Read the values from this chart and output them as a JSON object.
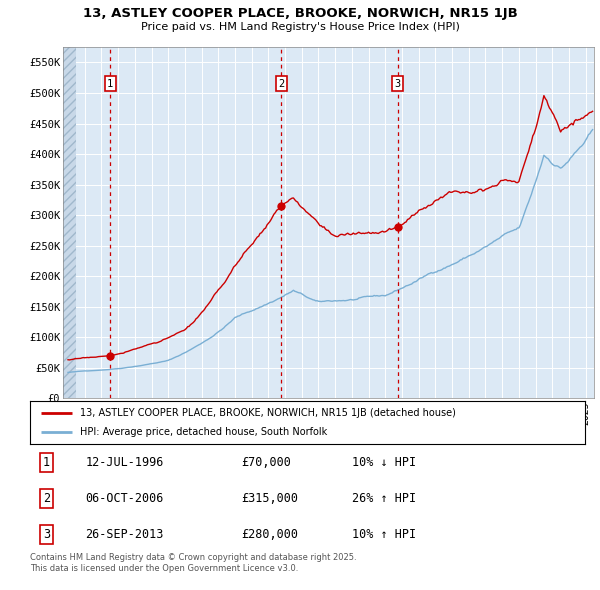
{
  "title1": "13, ASTLEY COOPER PLACE, BROOKE, NORWICH, NR15 1JB",
  "title2": "Price paid vs. HM Land Registry's House Price Index (HPI)",
  "legend_line1": "13, ASTLEY COOPER PLACE, BROOKE, NORWICH, NR15 1JB (detached house)",
  "legend_line2": "HPI: Average price, detached house, South Norfolk",
  "transaction_color": "#cc0000",
  "hpi_color": "#7aafd4",
  "background_color": "#dce9f5",
  "transactions": [
    {
      "label": "1",
      "date": "12-JUL-1996",
      "price": 70000,
      "hpi_diff": "10% ↓ HPI",
      "x": 1996.53
    },
    {
      "label": "2",
      "date": "06-OCT-2006",
      "price": 315000,
      "hpi_diff": "26% ↑ HPI",
      "x": 2006.77
    },
    {
      "label": "3",
      "date": "26-SEP-2013",
      "price": 280000,
      "hpi_diff": "10% ↑ HPI",
      "x": 2013.74
    }
  ],
  "footer": "Contains HM Land Registry data © Crown copyright and database right 2025.\nThis data is licensed under the Open Government Licence v3.0.",
  "ylim": [
    0,
    575000
  ],
  "xlim_start": 1993.7,
  "xlim_end": 2025.5,
  "yticks": [
    0,
    50000,
    100000,
    150000,
    200000,
    250000,
    300000,
    350000,
    400000,
    450000,
    500000,
    550000
  ],
  "ytick_labels": [
    "£0",
    "£50K",
    "£100K",
    "£150K",
    "£200K",
    "£250K",
    "£300K",
    "£350K",
    "£400K",
    "£450K",
    "£500K",
    "£550K"
  ],
  "table_rows": [
    {
      "label": "1",
      "date": "12-JUL-1996",
      "price": "£70,000",
      "hpi": "10% ↓ HPI"
    },
    {
      "label": "2",
      "date": "06-OCT-2006",
      "price": "£315,000",
      "hpi": "26% ↑ HPI"
    },
    {
      "label": "3",
      "date": "26-SEP-2013",
      "price": "£280,000",
      "hpi": "10% ↑ HPI"
    }
  ]
}
